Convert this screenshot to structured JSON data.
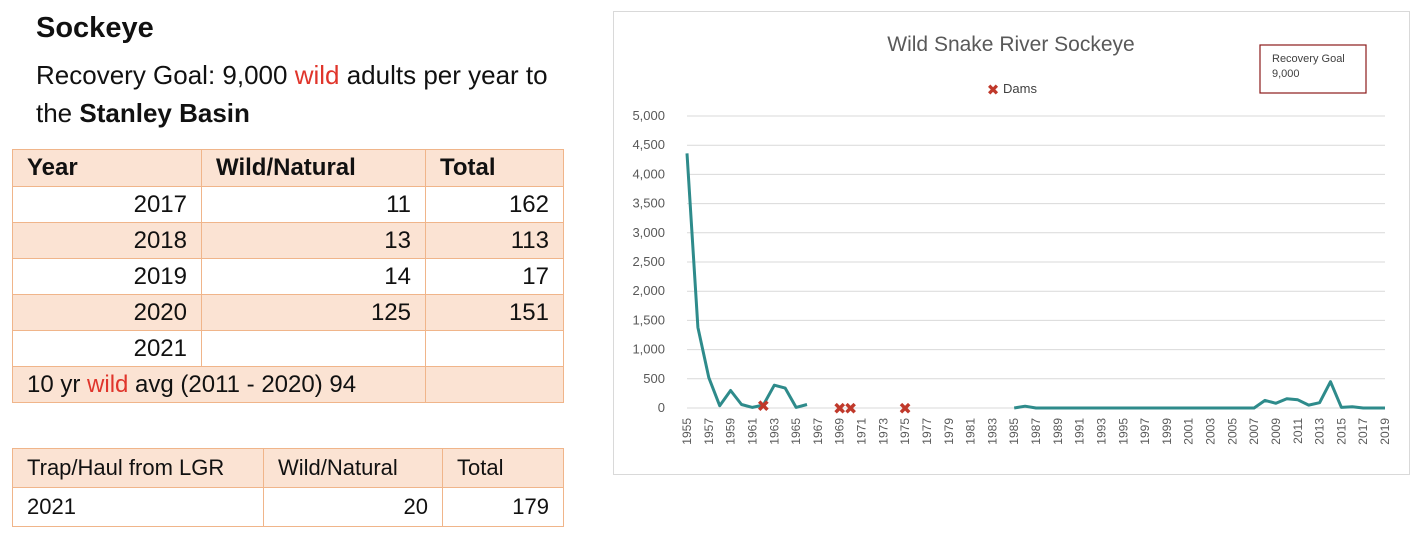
{
  "header": {
    "title": "Sockeye",
    "goal_prefix": "Recovery Goal: 9,000 ",
    "goal_wild": "wild",
    "goal_suffix": " adults per year to the ",
    "goal_place": "Stanley Basin"
  },
  "returns_table": {
    "headers": [
      "Year",
      "Wild/Natural",
      "Total"
    ],
    "rows": [
      {
        "year": "2017",
        "wild": "11",
        "total": "162"
      },
      {
        "year": "2018",
        "wild": "13",
        "total": "113"
      },
      {
        "year": "2019",
        "wild": "14",
        "total": "17"
      },
      {
        "year": "2020",
        "wild": "125",
        "total": "151"
      },
      {
        "year": "2021",
        "wild": "",
        "total": ""
      }
    ],
    "avg_prefix": "10 yr ",
    "avg_wild": "wild",
    "avg_suffix": " avg (2011 - 2020) 94"
  },
  "trap_table": {
    "headers": [
      "Trap/Haul from LGR",
      "Wild/Natural",
      "Total"
    ],
    "rows": [
      {
        "year": "2021",
        "wild": "20",
        "total": "179"
      }
    ]
  },
  "colors": {
    "line": "#2e8b8b",
    "dams": "#c0392b",
    "accent_red": "#e0352b",
    "table_border": "#f0b58a",
    "table_shade": "#fbe3d3"
  },
  "chart_data": {
    "type": "line",
    "title": "Wild Snake River Sockeye",
    "legend": {
      "dams_label": "Dams",
      "placement": "top-center"
    },
    "annotation": {
      "line1": "Recovery Goal",
      "line2": "9,000",
      "placement": "top-right"
    },
    "ylim": [
      0,
      5000
    ],
    "yticks": [
      0,
      500,
      1000,
      1500,
      2000,
      2500,
      3000,
      3500,
      4000,
      4500,
      5000
    ],
    "ytick_labels": [
      "0",
      "500",
      "1,000",
      "1,500",
      "2,000",
      "2,500",
      "3,000",
      "3,500",
      "4,000",
      "4,500",
      "5,000"
    ],
    "xlim": [
      1955,
      2019
    ],
    "xticks": [
      1955,
      1957,
      1959,
      1961,
      1963,
      1965,
      1967,
      1969,
      1971,
      1973,
      1975,
      1977,
      1979,
      1981,
      1983,
      1985,
      1987,
      1989,
      1991,
      1993,
      1995,
      1997,
      1999,
      2001,
      2003,
      2005,
      2007,
      2009,
      2011,
      2013,
      2015,
      2017,
      2019
    ],
    "grid": true,
    "series": [
      {
        "name": "Wild Snake River Sockeye",
        "segments": [
          {
            "x": [
              1955,
              1956,
              1957,
              1958,
              1959,
              1960,
              1961,
              1962,
              1963,
              1964,
              1965,
              1966
            ],
            "y": [
              4360,
              1380,
              520,
              40,
              300,
              60,
              10,
              50,
              390,
              340,
              10,
              60
            ]
          },
          {
            "x": [
              1985,
              1986,
              1987,
              1988,
              1989,
              1990,
              1991,
              1992,
              1993,
              1994,
              1995,
              1996,
              1997,
              1998,
              1999,
              2000,
              2001,
              2002,
              2003,
              2004,
              2005,
              2006,
              2007,
              2008,
              2009,
              2010,
              2011,
              2012,
              2013,
              2014,
              2015,
              2016,
              2017,
              2018,
              2019
            ],
            "y": [
              0,
              30,
              0,
              0,
              0,
              0,
              0,
              0,
              0,
              0,
              0,
              0,
              0,
              0,
              0,
              0,
              0,
              0,
              0,
              0,
              0,
              0,
              0,
              130,
              80,
              160,
              140,
              50,
              90,
              450,
              10,
              20,
              0,
              0,
              0
            ]
          }
        ]
      }
    ],
    "dams": [
      {
        "x": 1962,
        "y": 40
      },
      {
        "x": 1969,
        "y": 0
      },
      {
        "x": 1970,
        "y": 0
      },
      {
        "x": 1975,
        "y": 0
      }
    ]
  }
}
